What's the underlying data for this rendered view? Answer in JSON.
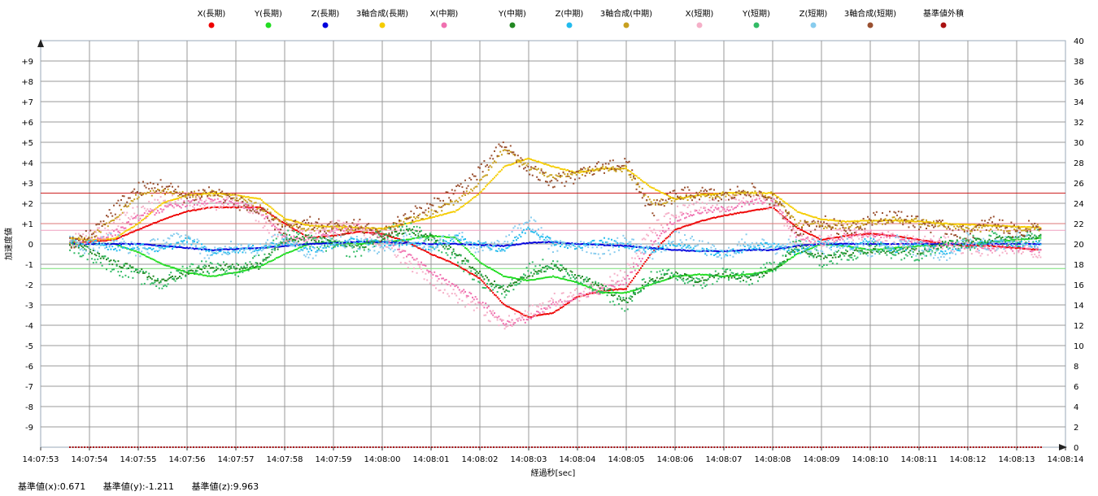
{
  "chart_data": {
    "type": "scatter",
    "title": "",
    "xlabel": "経過秒[sec]",
    "ylabel": "加速度値",
    "x_ticks": [
      "14:07:53",
      "14:07:54",
      "14:07:55",
      "14:07:56",
      "14:07:57",
      "14:07:58",
      "14:07:59",
      "14:08:00",
      "14:08:01",
      "14:08:02",
      "14:08:03",
      "14:08:04",
      "14:08:05",
      "14:08:06",
      "14:08:07",
      "14:08:08",
      "14:08:09",
      "14:08:10",
      "14:08:11",
      "14:08:12",
      "14:08:13",
      "14:08:14"
    ],
    "xlim": [
      0,
      21
    ],
    "ylim_left": [
      -10,
      10
    ],
    "ylim_right": [
      0,
      40
    ],
    "y_ticks_left": [
      "-9",
      "-8",
      "-7",
      "-6",
      "-5",
      "-4",
      "-3",
      "-2",
      "-1",
      "0",
      "+1",
      "+2",
      "+3",
      "+4",
      "+5",
      "+6",
      "+7",
      "+8",
      "+9"
    ],
    "y_ticks_right": [
      "0",
      "2",
      "4",
      "6",
      "8",
      "10",
      "12",
      "14",
      "16",
      "18",
      "20",
      "22",
      "24",
      "26",
      "28",
      "30",
      "32",
      "34",
      "36",
      "38",
      "40"
    ],
    "grid": true,
    "legend_position": "top",
    "legend": [
      {
        "name": "X(長期)",
        "color": "#ee0000"
      },
      {
        "name": "Y(長期)",
        "color": "#22dd22"
      },
      {
        "name": "Z(長期)",
        "color": "#0000dd"
      },
      {
        "name": "3軸合成(長期)",
        "color": "#f5cc00"
      },
      {
        "name": "X(中期)",
        "color": "#f070b0"
      },
      {
        "name": "Y(中期)",
        "color": "#228822"
      },
      {
        "name": "Z(中期)",
        "color": "#22bbee"
      },
      {
        "name": "3軸合成(中期)",
        "color": "#c8a020"
      },
      {
        "name": "X(短期)",
        "color": "#f5b0c8"
      },
      {
        "name": "Y(短期)",
        "color": "#33bb66"
      },
      {
        "name": "Z(短期)",
        "color": "#88ccee"
      },
      {
        "name": "3軸合成(短期)",
        "color": "#9a5030"
      },
      {
        "name": "基準値外積",
        "color": "#aa1111"
      }
    ],
    "reference_lines": [
      {
        "value": 2.5,
        "color": "#cc2222"
      },
      {
        "value": 1.0,
        "color": "#dd7777"
      },
      {
        "value": 0.671,
        "color": "#f0a0c0"
      },
      {
        "value": -1.211,
        "color": "#77dd77"
      }
    ],
    "series": [
      {
        "name": "X(長期)",
        "color": "#ee0000",
        "axis": "left",
        "x": [
          0.6,
          1.0,
          1.5,
          2.0,
          2.5,
          3.0,
          3.5,
          4.0,
          4.5,
          5.0,
          5.5,
          6.0,
          6.5,
          7.0,
          7.5,
          8.0,
          8.5,
          9.0,
          9.5,
          10.0,
          10.5,
          11.0,
          11.5,
          12.0,
          12.5,
          13.0,
          13.5,
          14.0,
          14.5,
          15.0,
          15.5,
          16.0,
          16.5,
          17.0,
          17.5,
          18.0,
          18.5,
          19.0,
          19.5,
          20.0,
          20.5
        ],
        "y": [
          0.0,
          0.1,
          0.2,
          0.7,
          1.2,
          1.6,
          1.8,
          1.8,
          1.8,
          1.0,
          0.3,
          0.4,
          0.6,
          0.5,
          0.1,
          -0.5,
          -1.0,
          -1.7,
          -3.0,
          -3.6,
          -3.4,
          -2.6,
          -2.3,
          -2.2,
          -0.5,
          0.7,
          1.1,
          1.4,
          1.6,
          1.8,
          0.8,
          0.2,
          0.4,
          0.5,
          0.4,
          0.2,
          0.0,
          -0.1,
          -0.1,
          -0.2,
          -0.3
        ]
      },
      {
        "name": "Y(長期)",
        "color": "#22dd22",
        "axis": "left",
        "x": [
          0.6,
          1.0,
          1.5,
          2.0,
          2.5,
          3.0,
          3.5,
          4.0,
          4.5,
          5.0,
          5.5,
          6.0,
          6.5,
          7.0,
          7.5,
          8.0,
          8.5,
          9.0,
          9.5,
          10.0,
          10.5,
          11.0,
          11.5,
          12.0,
          12.5,
          13.0,
          13.5,
          14.0,
          14.5,
          15.0,
          15.5,
          16.0,
          16.5,
          17.0,
          17.5,
          18.0,
          18.5,
          19.0,
          19.5,
          20.0,
          20.5
        ],
        "y": [
          0.0,
          0.0,
          0.0,
          -0.4,
          -1.0,
          -1.4,
          -1.6,
          -1.4,
          -1.1,
          -0.5,
          0.0,
          0.1,
          0.0,
          0.1,
          0.2,
          0.4,
          0.3,
          -0.9,
          -1.6,
          -1.8,
          -1.6,
          -1.9,
          -2.4,
          -2.4,
          -2.0,
          -1.6,
          -1.5,
          -1.6,
          -1.5,
          -1.3,
          -0.5,
          0.0,
          -0.1,
          -0.3,
          -0.2,
          -0.1,
          0.0,
          0.0,
          0.1,
          0.2,
          0.3
        ]
      },
      {
        "name": "Z(長期)",
        "color": "#0000dd",
        "axis": "left",
        "x": [
          0.6,
          1.0,
          1.5,
          2.0,
          2.5,
          3.0,
          3.5,
          4.0,
          4.5,
          5.0,
          5.5,
          6.0,
          6.5,
          7.0,
          7.5,
          8.0,
          8.5,
          9.0,
          9.5,
          10.0,
          10.5,
          11.0,
          11.5,
          12.0,
          12.5,
          13.0,
          13.5,
          14.0,
          14.5,
          15.0,
          15.5,
          16.0,
          16.5,
          17.0,
          17.5,
          18.0,
          18.5,
          19.0,
          19.5,
          20.0,
          20.5
        ],
        "y": [
          0.0,
          0.0,
          0.0,
          0.0,
          -0.1,
          -0.2,
          -0.3,
          -0.25,
          -0.2,
          -0.1,
          0.0,
          0.05,
          0.1,
          0.1,
          0.05,
          0.0,
          0.0,
          -0.05,
          -0.1,
          0.05,
          0.1,
          0.0,
          -0.05,
          -0.1,
          -0.2,
          -0.3,
          -0.35,
          -0.35,
          -0.3,
          -0.3,
          -0.1,
          0.0,
          0.0,
          0.0,
          0.0,
          0.0,
          0.0,
          0.0,
          0.0,
          0.0,
          0.0
        ]
      },
      {
        "name": "3軸合成(長期)",
        "color": "#f5cc00",
        "axis": "right",
        "x": [
          0.6,
          1.0,
          1.5,
          2.0,
          2.5,
          3.0,
          3.5,
          4.0,
          4.5,
          5.0,
          5.5,
          6.0,
          6.5,
          7.0,
          7.5,
          8.0,
          8.5,
          9.0,
          9.5,
          10.0,
          10.5,
          11.0,
          11.5,
          12.0,
          12.5,
          13.0,
          13.5,
          14.0,
          14.5,
          15.0,
          15.5,
          16.0,
          16.5,
          17.0,
          17.5,
          18.0,
          18.5,
          19.0,
          19.5,
          20.0,
          20.5
        ],
        "y": [
          20.6,
          20.4,
          20.5,
          22.0,
          24.0,
          24.8,
          25.0,
          24.8,
          24.4,
          22.5,
          21.8,
          21.7,
          21.6,
          21.5,
          22.0,
          22.6,
          23.2,
          25.0,
          27.6,
          28.4,
          27.6,
          27.0,
          27.4,
          27.4,
          25.6,
          24.4,
          24.8,
          25.0,
          25.0,
          25.0,
          23.2,
          22.4,
          22.2,
          22.3,
          22.3,
          22.2,
          22.0,
          21.9,
          21.8,
          21.7,
          21.6
        ]
      },
      {
        "name": "X(中期)",
        "color": "#f070b0",
        "axis": "left",
        "x": [
          0.6,
          1.0,
          1.5,
          2.0,
          2.5,
          3.0,
          3.5,
          4.0,
          4.5,
          5.0,
          5.5,
          6.0,
          6.5,
          7.0,
          7.5,
          8.0,
          8.5,
          9.0,
          9.5,
          10.0,
          10.5,
          11.0,
          11.5,
          12.0,
          12.5,
          13.0,
          13.5,
          14.0,
          14.5,
          15.0,
          15.5,
          16.0,
          16.5,
          17.0,
          17.5,
          18.0,
          18.5,
          19.0,
          19.5,
          20.0,
          20.5
        ],
        "y": [
          0.0,
          0.1,
          0.5,
          1.3,
          1.7,
          2.0,
          2.1,
          2.0,
          1.6,
          0.3,
          0.2,
          0.7,
          0.9,
          0.4,
          -0.5,
          -1.4,
          -2.1,
          -2.8,
          -3.9,
          -3.7,
          -3.0,
          -2.6,
          -2.3,
          -1.8,
          0.0,
          1.2,
          1.6,
          1.7,
          2.0,
          2.2,
          0.4,
          0.0,
          0.4,
          0.5,
          0.3,
          0.1,
          0.0,
          -0.1,
          -0.2,
          -0.2,
          -0.3
        ]
      },
      {
        "name": "Y(中期)",
        "color": "#228822",
        "axis": "left",
        "x": [
          0.6,
          1.0,
          1.5,
          2.0,
          2.5,
          3.0,
          3.5,
          4.0,
          4.5,
          5.0,
          5.5,
          6.0,
          6.5,
          7.0,
          7.5,
          8.0,
          8.5,
          9.0,
          9.5,
          10.0,
          10.5,
          11.0,
          11.5,
          12.0,
          12.5,
          13.0,
          13.5,
          14.0,
          14.5,
          15.0,
          15.5,
          16.0,
          16.5,
          17.0,
          17.5,
          18.0,
          18.5,
          19.0,
          19.5,
          20.0,
          20.5
        ],
        "y": [
          0.0,
          -0.3,
          -0.9,
          -1.3,
          -1.9,
          -1.4,
          -1.2,
          -1.1,
          -1.1,
          0.2,
          0.3,
          0.1,
          -0.2,
          0.3,
          0.7,
          0.3,
          -0.4,
          -1.5,
          -2.3,
          -1.5,
          -1.1,
          -1.6,
          -2.1,
          -2.8,
          -1.8,
          -1.5,
          -1.8,
          -1.5,
          -1.7,
          -1.3,
          -0.2,
          -0.6,
          -0.5,
          -0.3,
          -0.3,
          -0.4,
          0.0,
          0.1,
          0.2,
          0.3,
          0.4
        ]
      },
      {
        "name": "Z(中期)",
        "color": "#22bbee",
        "axis": "left",
        "x": [
          0.6,
          1.0,
          1.5,
          2.0,
          2.5,
          3.0,
          3.5,
          4.0,
          4.5,
          5.0,
          5.5,
          6.0,
          6.5,
          7.0,
          7.5,
          8.0,
          8.5,
          9.0,
          9.5,
          10.0,
          10.5,
          11.0,
          11.5,
          12.0,
          12.5,
          13.0,
          13.5,
          14.0,
          14.5,
          15.0,
          15.5,
          16.0,
          16.5,
          17.0,
          17.5,
          18.0,
          18.5,
          19.0,
          19.5,
          20.0,
          20.5
        ],
        "y": [
          0.0,
          0.1,
          -0.2,
          -0.1,
          -0.3,
          0.2,
          -0.4,
          -0.3,
          -0.2,
          0.1,
          -0.3,
          -0.1,
          0.2,
          0.0,
          0.1,
          -0.2,
          0.3,
          0.0,
          -0.3,
          0.8,
          0.1,
          -0.2,
          0.2,
          -0.1,
          -0.3,
          0.0,
          -0.3,
          -0.5,
          -0.2,
          0.0,
          -0.4,
          0.1,
          -0.2,
          0.2,
          -0.3,
          0.0,
          -0.4,
          -0.1,
          0.1,
          0.0,
          0.0
        ]
      },
      {
        "name": "3軸合成(中期)",
        "color": "#c8a020",
        "axis": "right",
        "x": [
          0.6,
          1.0,
          1.5,
          2.0,
          2.5,
          3.0,
          3.5,
          4.0,
          4.5,
          5.0,
          5.5,
          6.0,
          6.5,
          7.0,
          7.5,
          8.0,
          8.5,
          9.0,
          9.5,
          10.0,
          10.5,
          11.0,
          11.5,
          12.0,
          12.5,
          13.0,
          13.5,
          14.0,
          14.5,
          15.0,
          15.5,
          16.0,
          16.5,
          17.0,
          17.5,
          18.0,
          18.5,
          19.0,
          19.5,
          20.0,
          20.5
        ],
        "y": [
          20.2,
          20.5,
          22.5,
          24.8,
          25.2,
          24.8,
          25.0,
          24.6,
          23.6,
          22.0,
          21.5,
          21.6,
          21.5,
          21.2,
          22.3,
          23.0,
          24.2,
          26.0,
          29.4,
          27.6,
          26.6,
          27.0,
          27.4,
          27.4,
          24.0,
          24.4,
          24.8,
          24.8,
          25.0,
          24.8,
          22.0,
          21.8,
          21.8,
          22.0,
          22.4,
          22.2,
          21.8,
          21.4,
          21.6,
          21.5,
          21.6
        ]
      },
      {
        "name": "X(短期)",
        "color": "#f5b0c8",
        "axis": "left",
        "x": [
          0.6,
          1.0,
          1.5,
          2.0,
          2.5,
          3.0,
          3.5,
          4.0,
          4.5,
          5.0,
          5.5,
          6.0,
          6.5,
          7.0,
          7.5,
          8.0,
          8.5,
          9.0,
          9.5,
          10.0,
          10.5,
          11.0,
          11.5,
          12.0,
          12.5,
          13.0,
          13.5,
          14.0,
          14.5,
          15.0,
          15.5,
          16.0,
          16.5,
          17.0,
          17.5,
          18.0,
          18.5,
          19.0,
          19.5,
          20.0,
          20.5
        ],
        "y": [
          0.1,
          0.3,
          0.9,
          1.6,
          2.0,
          2.2,
          1.9,
          2.1,
          1.3,
          0.0,
          0.5,
          0.8,
          0.8,
          0.1,
          -0.8,
          -1.7,
          -2.5,
          -3.2,
          -4.0,
          -3.4,
          -2.8,
          -2.5,
          -2.0,
          -1.4,
          0.6,
          1.5,
          1.8,
          1.9,
          2.3,
          2.0,
          0.1,
          0.1,
          0.5,
          0.4,
          0.2,
          0.0,
          0.1,
          -0.2,
          -0.3,
          -0.1,
          -0.4
        ]
      },
      {
        "name": "Y(短期)",
        "color": "#33bb66",
        "axis": "left",
        "x": [
          0.6,
          1.0,
          1.5,
          2.0,
          2.5,
          3.0,
          3.5,
          4.0,
          4.5,
          5.0,
          5.5,
          6.0,
          6.5,
          7.0,
          7.5,
          8.0,
          8.5,
          9.0,
          9.5,
          10.0,
          10.5,
          11.0,
          11.5,
          12.0,
          12.5,
          13.0,
          13.5,
          14.0,
          14.5,
          15.0,
          15.5,
          16.0,
          16.5,
          17.0,
          17.5,
          18.0,
          18.5,
          19.0,
          19.5,
          20.0,
          20.5
        ],
        "y": [
          -0.1,
          -0.5,
          -1.1,
          -1.6,
          -2.0,
          -1.2,
          -1.1,
          -1.3,
          -0.8,
          0.4,
          0.1,
          -0.1,
          -0.4,
          0.5,
          0.8,
          0.2,
          -0.6,
          -1.8,
          -2.4,
          -1.2,
          -1.0,
          -1.8,
          -2.3,
          -3.0,
          -1.6,
          -1.6,
          -2.0,
          -1.4,
          -1.8,
          -1.1,
          0.0,
          -0.8,
          -0.6,
          -0.2,
          -0.4,
          -0.5,
          0.1,
          0.0,
          0.3,
          0.2,
          0.5
        ]
      },
      {
        "name": "Z(短期)",
        "color": "#88ccee",
        "axis": "left",
        "x": [
          0.6,
          1.0,
          1.5,
          2.0,
          2.5,
          3.0,
          3.5,
          4.0,
          4.5,
          5.0,
          5.5,
          6.0,
          6.5,
          7.0,
          7.5,
          8.0,
          8.5,
          9.0,
          9.5,
          10.0,
          10.5,
          11.0,
          11.5,
          12.0,
          12.5,
          13.0,
          13.5,
          14.0,
          14.5,
          15.0,
          15.5,
          16.0,
          16.5,
          17.0,
          17.5,
          18.0,
          18.5,
          19.0,
          19.5,
          20.0,
          20.5
        ],
        "y": [
          0.1,
          -0.2,
          0.3,
          -0.4,
          0.1,
          0.3,
          -0.6,
          0.0,
          -0.3,
          0.4,
          -0.5,
          0.2,
          0.1,
          -0.3,
          0.3,
          -0.1,
          0.5,
          -0.3,
          0.0,
          1.2,
          -0.2,
          0.1,
          -0.4,
          0.2,
          -0.5,
          0.3,
          -0.1,
          -0.6,
          0.2,
          -0.3,
          0.2,
          -0.3,
          0.1,
          -0.4,
          0.2,
          -0.3,
          -0.6,
          0.2,
          -0.2,
          0.3,
          -0.1
        ]
      },
      {
        "name": "3軸合成(短期)",
        "color": "#9a5030",
        "axis": "right",
        "x": [
          0.6,
          1.0,
          1.5,
          2.0,
          2.5,
          3.0,
          3.5,
          4.0,
          4.5,
          5.0,
          5.5,
          6.0,
          6.5,
          7.0,
          7.5,
          8.0,
          8.5,
          9.0,
          9.5,
          10.0,
          10.5,
          11.0,
          11.5,
          12.0,
          12.5,
          13.0,
          13.5,
          14.0,
          14.5,
          15.0,
          15.5,
          16.0,
          16.5,
          17.0,
          17.5,
          18.0,
          18.5,
          19.0,
          19.5,
          20.0,
          20.5
        ],
        "y": [
          20.0,
          20.8,
          23.4,
          25.4,
          25.8,
          24.6,
          25.2,
          24.2,
          23.0,
          21.4,
          22.0,
          21.4,
          21.8,
          20.8,
          22.8,
          23.6,
          25.2,
          27.0,
          29.8,
          27.2,
          26.2,
          26.6,
          27.6,
          28.0,
          23.2,
          24.8,
          25.0,
          24.6,
          25.4,
          24.4,
          21.4,
          22.2,
          21.4,
          22.4,
          22.8,
          22.0,
          21.6,
          21.0,
          22.2,
          21.2,
          22.0
        ]
      },
      {
        "name": "基準値外積",
        "color": "#aa1111",
        "axis": "right",
        "x": [
          0.6,
          20.5
        ],
        "y": [
          0,
          0
        ]
      }
    ]
  },
  "footer": {
    "ref_x": "基準値(x):0.671",
    "ref_y": "基準値(y):-1.211",
    "ref_z": "基準値(z):9.963"
  }
}
